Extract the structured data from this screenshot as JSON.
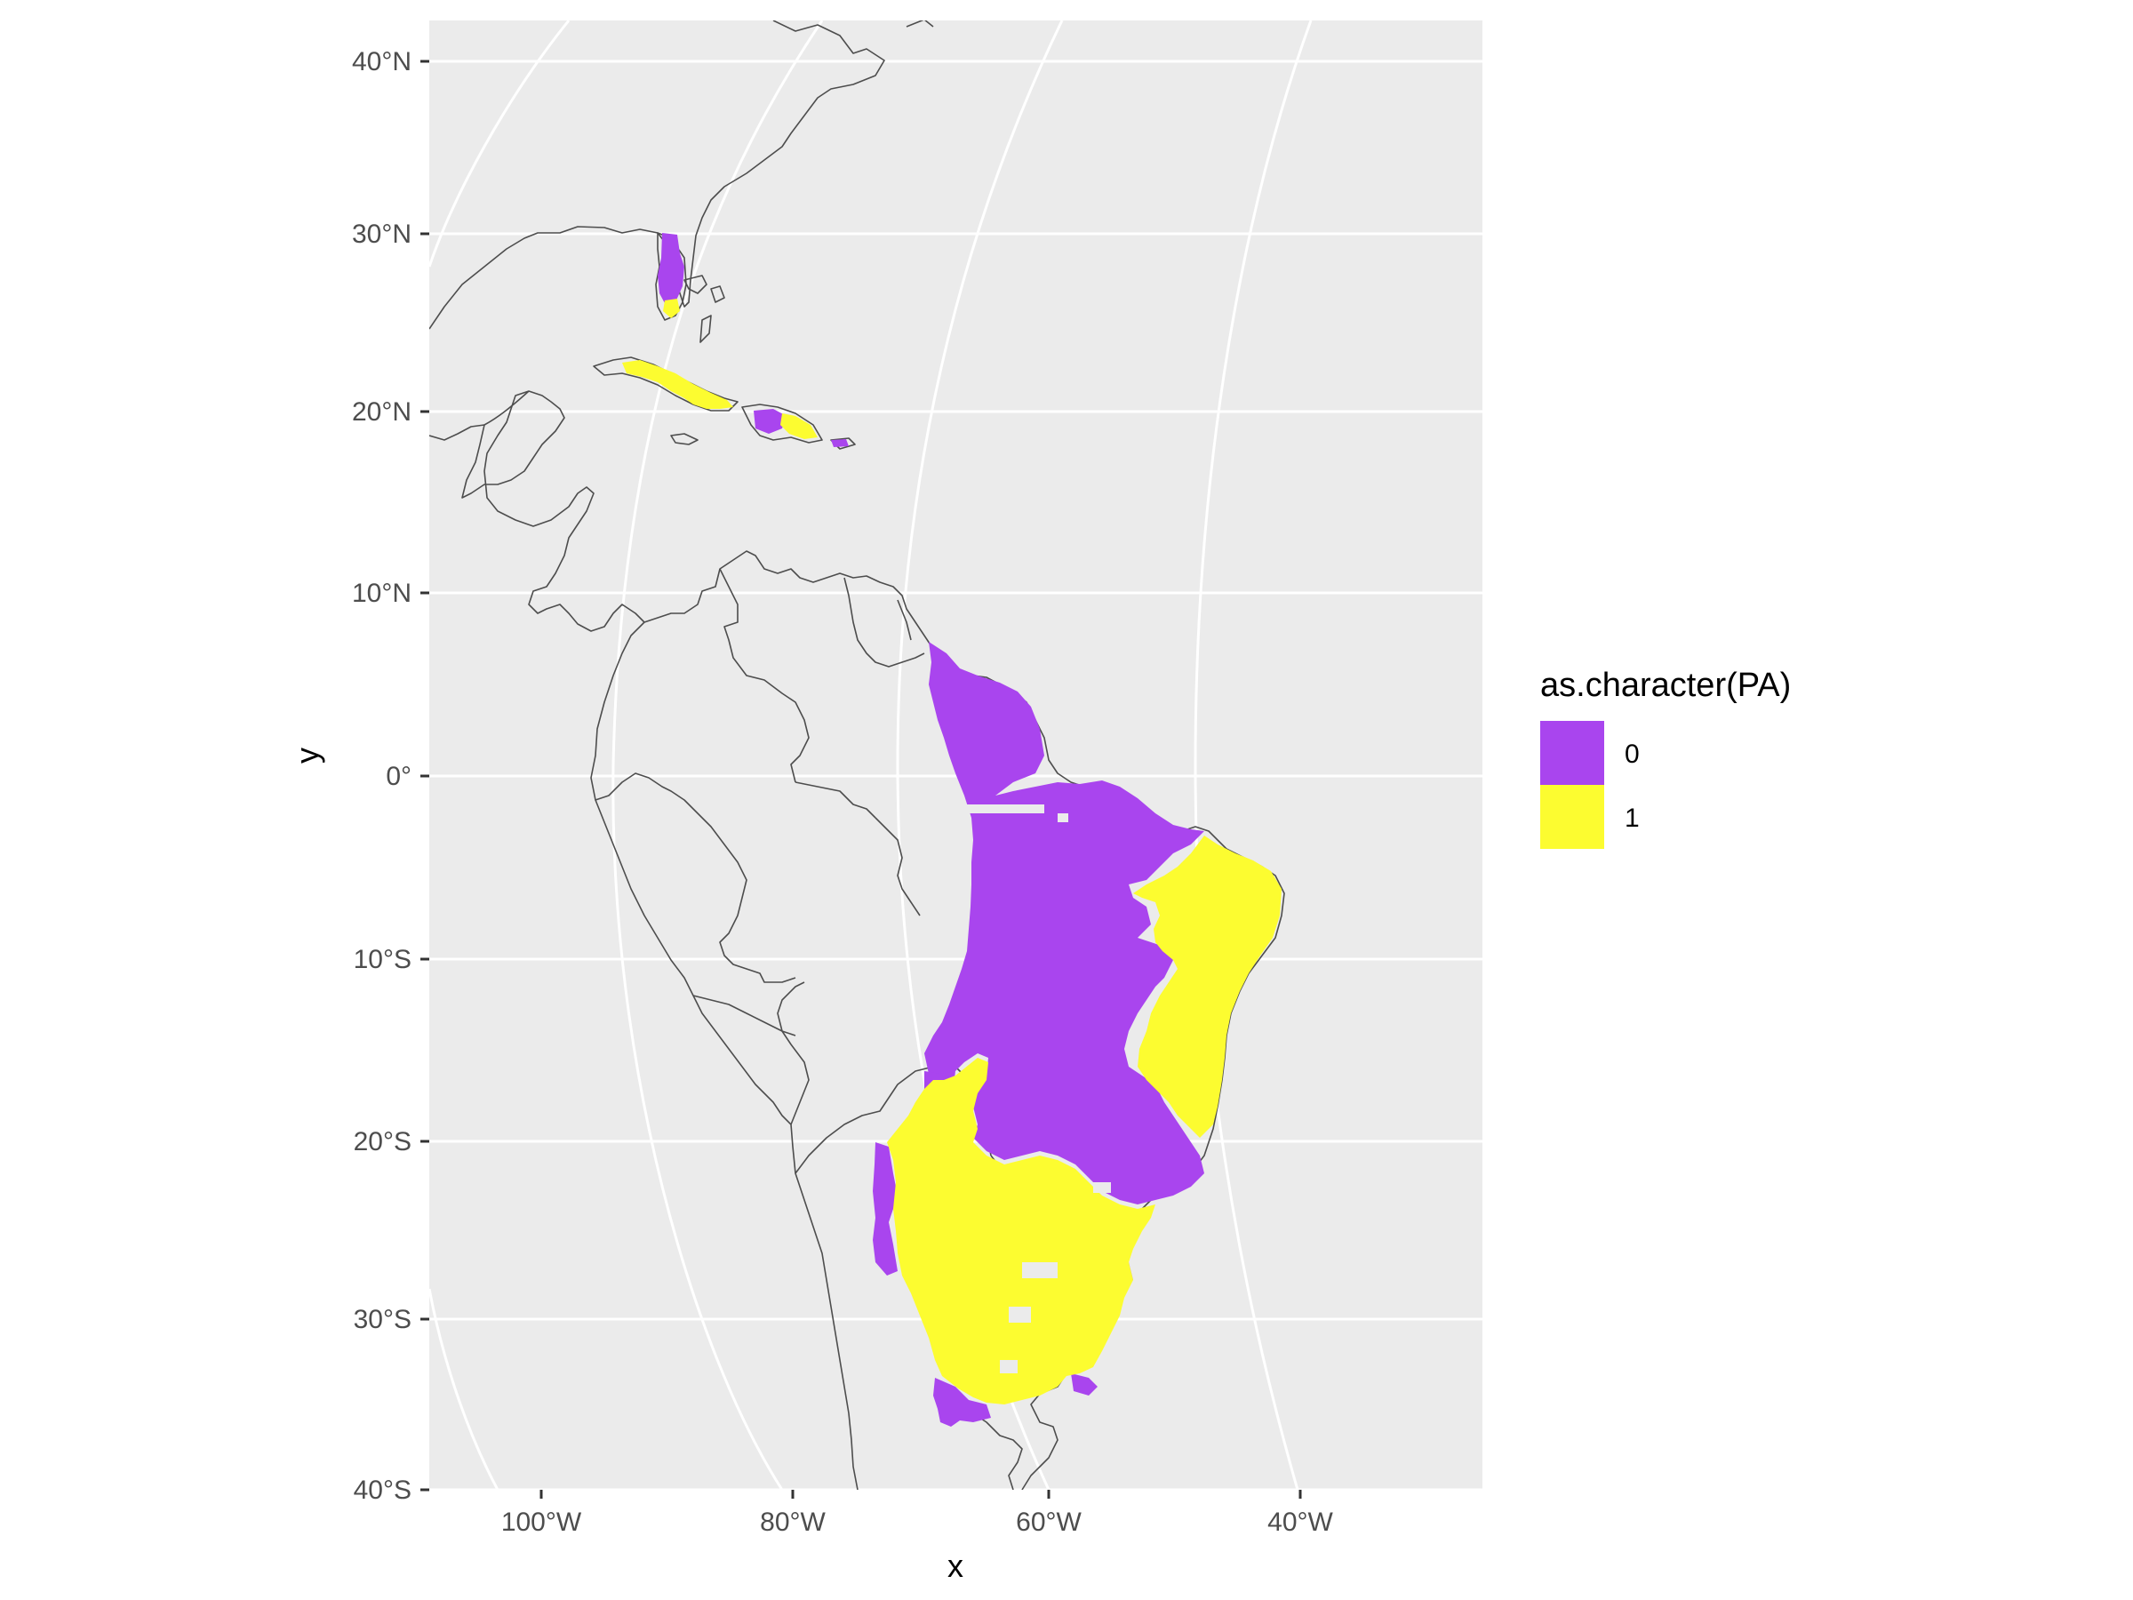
{
  "chart_data": {
    "type": "map",
    "xlabel": "x",
    "ylabel": "y",
    "x_ticks": [
      "100°W",
      "80°W",
      "60°W",
      "40°W"
    ],
    "y_ticks": [
      "40°N",
      "30°N",
      "20°N",
      "10°N",
      "0°",
      "10°S",
      "20°S",
      "30°S",
      "40°S"
    ],
    "legend": {
      "title": "as.character(PA)",
      "position": "right",
      "entries": [
        {
          "label": "0",
          "color": "#A945EE"
        },
        {
          "label": "1",
          "color": "#FCFC30"
        }
      ]
    },
    "panel_background": "#EBEBEB",
    "grid_color": "#FFFFFF",
    "coastline_color": "#4D4D4D",
    "regions": [
      {
        "name": "Florida",
        "class": "0"
      },
      {
        "name": "Cuba",
        "class": "1"
      },
      {
        "name": "Hispaniola",
        "class": "0"
      },
      {
        "name": "Northern Brazil",
        "class": "0"
      },
      {
        "name": "Central Brazil",
        "class": "0"
      },
      {
        "name": "Northeast Brazil",
        "class": "1"
      },
      {
        "name": "Southern South America",
        "class": "1"
      }
    ]
  }
}
